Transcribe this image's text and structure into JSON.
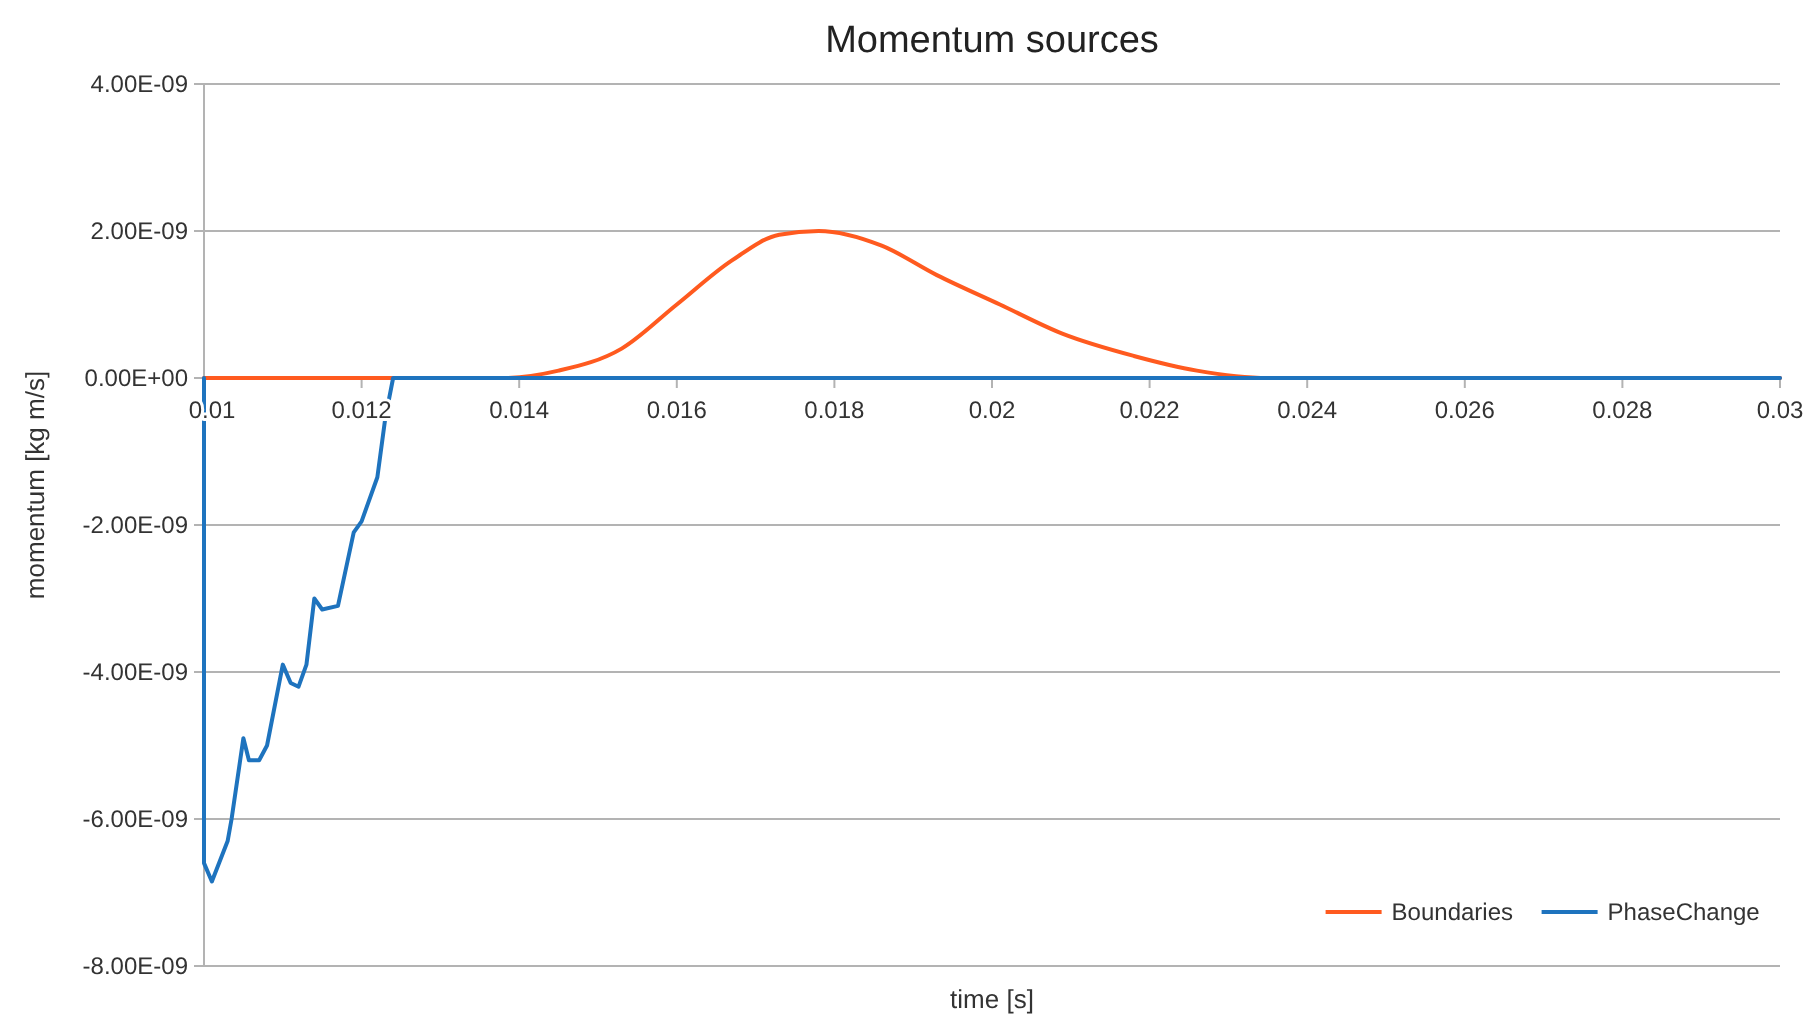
{
  "chart_data": {
    "type": "line",
    "title": "Momentum sources",
    "xlabel": "time [s]",
    "ylabel": "momentum [kg m/s]",
    "xlim": [
      0.01,
      0.03
    ],
    "xticks": [
      0.01,
      0.012,
      0.014,
      0.016,
      0.018,
      0.02,
      0.022,
      0.024,
      0.026,
      0.028,
      0.03
    ],
    "ylim": [
      -8e-09,
      4e-09
    ],
    "yticks": [
      {
        "value": -8e-09,
        "label": "-8.00E-09"
      },
      {
        "value": -6e-09,
        "label": "-6.00E-09"
      },
      {
        "value": -4e-09,
        "label": "-4.00E-09"
      },
      {
        "value": -2e-09,
        "label": "-2.00E-09"
      },
      {
        "value": 0,
        "label": "0.00E+00"
      },
      {
        "value": 2e-09,
        "label": "2.00E-09"
      },
      {
        "value": 4e-09,
        "label": "4.00E-09"
      }
    ],
    "grid": "y",
    "legend": "bottom right",
    "marker": "none",
    "line_style": "solid",
    "series": [
      {
        "name": "Boundaries",
        "color": "#ff5a1f",
        "x": [
          0.01,
          0.013,
          0.0138,
          0.0145,
          0.0153,
          0.016,
          0.0167,
          0.0173,
          0.0178,
          0.0186,
          0.0193,
          0.0201,
          0.0209,
          0.0218,
          0.0226,
          0.0235,
          0.0243,
          0.03
        ],
        "values": [
          0,
          0,
          0,
          1e-10,
          4e-10,
          1e-09,
          1.6e-09,
          1.95e-09,
          2e-09,
          1.8e-09,
          1.4e-09,
          1e-09,
          6e-10,
          3e-10,
          1e-10,
          0,
          0,
          0
        ]
      },
      {
        "name": "PhaseChange",
        "color": "#1e73be",
        "x": [
          0.01,
          0.01,
          0.0101,
          0.0103,
          0.01035,
          0.0105,
          0.01057,
          0.0107,
          0.0108,
          0.011,
          0.0111,
          0.0112,
          0.0113,
          0.0114,
          0.0115,
          0.0117,
          0.0119,
          0.012,
          0.0122,
          0.0123,
          0.0124,
          0.03
        ],
        "values": [
          0,
          -6.6e-09,
          -6.85e-09,
          -6.3e-09,
          -6e-09,
          -4.9e-09,
          -5.2e-09,
          -5.2e-09,
          -5e-09,
          -3.9e-09,
          -4.15e-09,
          -4.2e-09,
          -3.9e-09,
          -3e-09,
          -3.15e-09,
          -3.1e-09,
          -2.1e-09,
          -1.95e-09,
          -1.35e-09,
          -5.5e-10,
          0,
          0
        ]
      }
    ]
  }
}
